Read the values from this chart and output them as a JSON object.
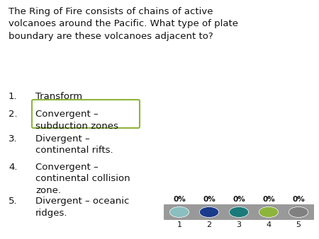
{
  "background_color": "#ffffff",
  "question": "The Ring of Fire consists of chains of active\nvolcanoes around the Pacific. What type of plate\nboundary are these volcanoes adjacent to?",
  "options": [
    "Transform",
    "Convergent –\nsubduction zones",
    "Divergent –\ncontinental rifts.",
    "Convergent –\ncontinental collision\nzone.",
    "Divergent – oceanic\nridges."
  ],
  "highlighted_option": 1,
  "highlight_box_color": "#8db53c",
  "highlight_box_facecolor": "#ffffff",
  "dot_colors": [
    "#8bbfbf",
    "#1a3a8c",
    "#1a7a7a",
    "#8db53c",
    "#808080"
  ],
  "bar_color": "#999999",
  "question_fontsize": 9.5,
  "option_fontsize": 9.5,
  "number_fontsize": 8,
  "percent_fontsize": 7.5
}
